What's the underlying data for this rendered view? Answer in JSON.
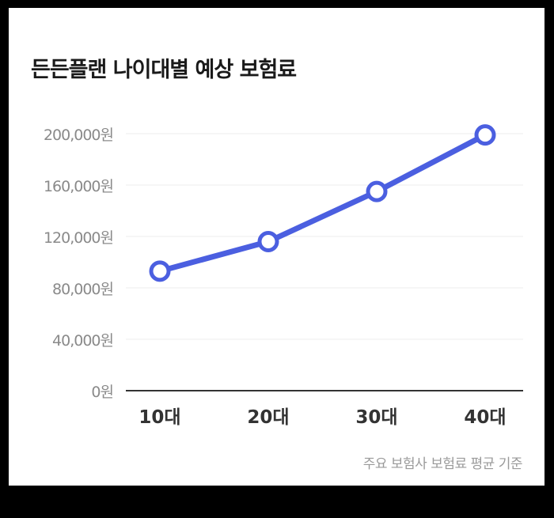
{
  "chart_data": {
    "type": "line",
    "title": "든든플랜 나이대별 예상 보험료",
    "categories": [
      "10대",
      "20대",
      "30대",
      "40대"
    ],
    "series": [
      {
        "values": [
          93000,
          116000,
          155000,
          199000
        ],
        "color": "#4b5fe0"
      }
    ],
    "yticks": [
      "0원",
      "40,000원",
      "80,000원",
      "120,000원",
      "160,000원",
      "200,000원"
    ],
    "ylim": [
      0,
      200000
    ],
    "grid": true,
    "note": "주요 보험사 보험료 평균 기준"
  }
}
